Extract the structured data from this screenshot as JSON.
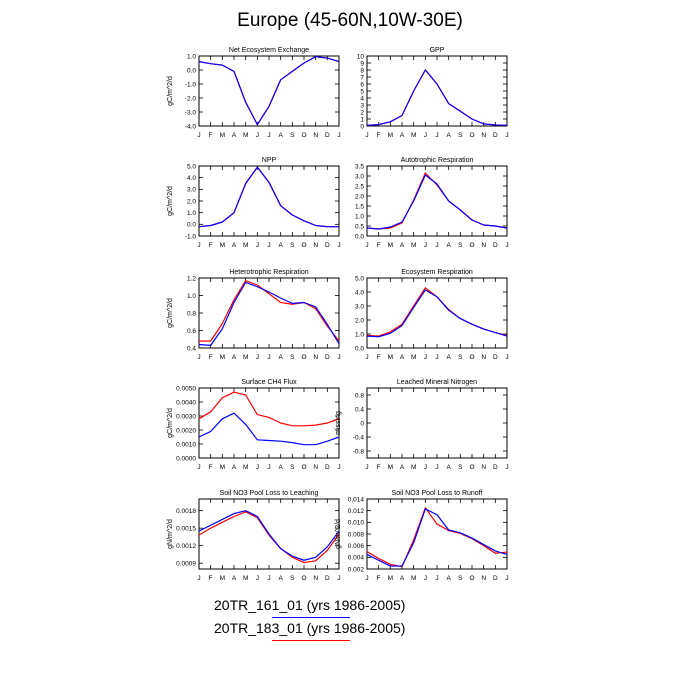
{
  "title": "Europe (45-60N,10W-30E)",
  "months": [
    "J",
    "F",
    "M",
    "A",
    "M",
    "J",
    "J",
    "A",
    "S",
    "O",
    "N",
    "D",
    "J"
  ],
  "legend": [
    {
      "label": "20TR_161_01 (yrs 1986-2005)",
      "color": "#0000ff"
    },
    {
      "label": "20TR_183_01 (yrs 1986-2005)",
      "color": "#ff0000"
    }
  ],
  "chart_data": [
    {
      "type": "line",
      "title": "Net Ecosystem Exchange",
      "ylabel": "gC/m^2/d",
      "ylim": [
        -4.0,
        1.0
      ],
      "yticks": [
        "1.0",
        "0.0",
        "-1.0",
        "-2.0",
        "-3.0",
        "-4.0"
      ],
      "ytick_values": [
        1.0,
        0.0,
        -1.0,
        -2.0,
        -3.0,
        -4.0
      ],
      "series": [
        {
          "values": [
            0.6,
            0.45,
            0.35,
            -0.1,
            -2.3,
            -3.9,
            -2.6,
            -0.7,
            -0.1,
            0.5,
            0.95,
            0.85,
            0.6
          ]
        },
        {
          "values": [
            0.6,
            0.45,
            0.35,
            -0.1,
            -2.3,
            -3.9,
            -2.6,
            -0.7,
            -0.1,
            0.5,
            0.95,
            0.85,
            0.6
          ]
        }
      ]
    },
    {
      "type": "line",
      "title": "GPP",
      "ylabel": "",
      "ylim": [
        0,
        10
      ],
      "yticks": [
        "10",
        "9",
        "8",
        "7",
        "6",
        "5",
        "4",
        "3",
        "2",
        "1",
        "0"
      ],
      "ytick_values": [
        10,
        9,
        8,
        7,
        6,
        5,
        4,
        3,
        2,
        1,
        0
      ],
      "series": [
        {
          "values": [
            0.1,
            0.2,
            0.6,
            1.5,
            5.0,
            8.0,
            6.0,
            3.2,
            2.1,
            1.0,
            0.3,
            0.15,
            0.1
          ]
        },
        {
          "values": [
            0.1,
            0.2,
            0.6,
            1.5,
            5.0,
            8.0,
            6.0,
            3.2,
            2.1,
            1.0,
            0.3,
            0.15,
            0.1
          ]
        }
      ]
    },
    {
      "type": "line",
      "title": "NPP",
      "ylabel": "gC/m^2/d",
      "ylim": [
        -1.0,
        5.0
      ],
      "yticks": [
        "5.0",
        "4.0",
        "3.0",
        "2.0",
        "1.0",
        "0.0",
        "-1.0"
      ],
      "ytick_values": [
        5,
        4,
        3,
        2,
        1,
        0,
        -1
      ],
      "series": [
        {
          "values": [
            -0.2,
            -0.1,
            0.2,
            1.0,
            3.5,
            4.9,
            3.6,
            1.6,
            0.8,
            0.3,
            -0.1,
            -0.2,
            -0.2
          ]
        },
        {
          "values": [
            -0.2,
            -0.1,
            0.2,
            1.0,
            3.5,
            4.9,
            3.6,
            1.6,
            0.8,
            0.3,
            -0.1,
            -0.2,
            -0.2
          ]
        }
      ]
    },
    {
      "type": "line",
      "title": "Autotrophic Respiration",
      "ylabel": "",
      "ylim": [
        0,
        3.5
      ],
      "yticks": [
        "3.5",
        "3.0",
        "2.5",
        "2.0",
        "1.5",
        "1.0",
        "0.5",
        "0.0"
      ],
      "ytick_values": [
        3.5,
        3.0,
        2.5,
        2.0,
        1.5,
        1.0,
        0.5,
        0.0
      ],
      "series": [
        {
          "values": [
            0.4,
            0.35,
            0.45,
            0.7,
            1.75,
            3.05,
            2.6,
            1.75,
            1.3,
            0.8,
            0.55,
            0.5,
            0.4
          ]
        },
        {
          "values": [
            0.4,
            0.35,
            0.4,
            0.65,
            1.8,
            3.15,
            2.55,
            1.75,
            1.3,
            0.8,
            0.55,
            0.5,
            0.4
          ]
        }
      ]
    },
    {
      "type": "line",
      "title": "Heterotrophic Respiration",
      "ylabel": "gC/m^2/d",
      "ylim": [
        0.4,
        1.2
      ],
      "yticks": [
        "1.2",
        "1.0",
        "0.8",
        "0.6",
        "0.4"
      ],
      "ytick_values": [
        1.2,
        1.0,
        0.8,
        0.6,
        0.4
      ],
      "series": [
        {
          "values": [
            0.44,
            0.43,
            0.62,
            0.92,
            1.15,
            1.1,
            1.04,
            0.97,
            0.91,
            0.92,
            0.87,
            0.67,
            0.45
          ]
        },
        {
          "values": [
            0.48,
            0.48,
            0.68,
            0.95,
            1.17,
            1.12,
            1.02,
            0.92,
            0.9,
            0.92,
            0.85,
            0.65,
            0.48
          ]
        }
      ]
    },
    {
      "type": "line",
      "title": "Ecosystem Respiration",
      "ylabel": "",
      "ylim": [
        0,
        5.0
      ],
      "yticks": [
        "5.0",
        "4.0",
        "3.0",
        "2.0",
        "1.0",
        "0.0"
      ],
      "ytick_values": [
        5,
        4,
        3,
        2,
        1,
        0
      ],
      "series": [
        {
          "values": [
            0.85,
            0.8,
            1.05,
            1.6,
            2.9,
            4.15,
            3.65,
            2.7,
            2.1,
            1.7,
            1.35,
            1.1,
            0.85
          ]
        },
        {
          "values": [
            0.9,
            0.85,
            1.15,
            1.7,
            3.0,
            4.3,
            3.65,
            2.75,
            2.1,
            1.7,
            1.35,
            1.1,
            0.9
          ]
        }
      ]
    },
    {
      "type": "line",
      "title": "Surface CH4 Flux",
      "ylabel": "gC/m^2/d",
      "ylim": [
        0,
        0.005
      ],
      "yticks": [
        "0.0050",
        "0.0040",
        "0.0030",
        "0.0020",
        "0.0010",
        "0.0000"
      ],
      "ytick_values": [
        0.005,
        0.004,
        0.003,
        0.002,
        0.001,
        0.0
      ],
      "series": [
        {
          "values": [
            0.0015,
            0.0019,
            0.0028,
            0.0032,
            0.0024,
            0.0013,
            0.00125,
            0.0012,
            0.0011,
            0.00095,
            0.00095,
            0.0012,
            0.0015
          ]
        },
        {
          "values": [
            0.0028,
            0.0033,
            0.0043,
            0.0047,
            0.0045,
            0.0031,
            0.0029,
            0.0025,
            0.0023,
            0.0023,
            0.00235,
            0.0025,
            0.0028
          ]
        }
      ]
    },
    {
      "type": "line",
      "title": "Leached Mineral Nitrogen",
      "ylabel": "missing",
      "ylim": [
        -1.0,
        1.0
      ],
      "yticks": [
        "0.8",
        "0.4",
        "0",
        "-0.4",
        "-0.8"
      ],
      "ytick_values": [
        0.8,
        0.4,
        0,
        -0.4,
        -0.8
      ],
      "series": []
    },
    {
      "type": "line",
      "title": "Soil NO3 Pool Loss to Leaching",
      "ylabel": "gN/m^2/d",
      "ylim": [
        0.0008,
        0.002
      ],
      "yticks": [
        "0.0018",
        "0.0015",
        "0.0012",
        "0.0009"
      ],
      "ytick_values": [
        0.0018,
        0.0015,
        0.0012,
        0.0009
      ],
      "series": [
        {
          "values": [
            0.00145,
            0.00155,
            0.00165,
            0.00175,
            0.0018,
            0.0017,
            0.0014,
            0.00115,
            0.00102,
            0.00095,
            0.001,
            0.00118,
            0.00145
          ]
        },
        {
          "values": [
            0.00138,
            0.0015,
            0.0016,
            0.0017,
            0.00178,
            0.00168,
            0.00138,
            0.00115,
            0.001,
            0.00091,
            0.00094,
            0.00112,
            0.0014
          ]
        }
      ]
    },
    {
      "type": "line",
      "title": "Soil NO3 Pool Loss to Runoff",
      "ylabel": "gN/m^2/d",
      "ylim": [
        0.002,
        0.014
      ],
      "yticks": [
        "0.014",
        "0.012",
        "0.010",
        "0.008",
        "0.006",
        "0.004",
        "0.002"
      ],
      "ytick_values": [
        0.014,
        0.012,
        0.01,
        0.008,
        0.006,
        0.004,
        0.002
      ],
      "series": [
        {
          "values": [
            0.0045,
            0.0035,
            0.0025,
            0.0025,
            0.0065,
            0.0123,
            0.0113,
            0.0087,
            0.0082,
            0.0073,
            0.0062,
            0.0051,
            0.0045
          ]
        },
        {
          "values": [
            0.005,
            0.0038,
            0.0028,
            0.0024,
            0.007,
            0.0125,
            0.0097,
            0.0086,
            0.0081,
            0.0072,
            0.006,
            0.0047,
            0.0049
          ]
        }
      ]
    }
  ]
}
